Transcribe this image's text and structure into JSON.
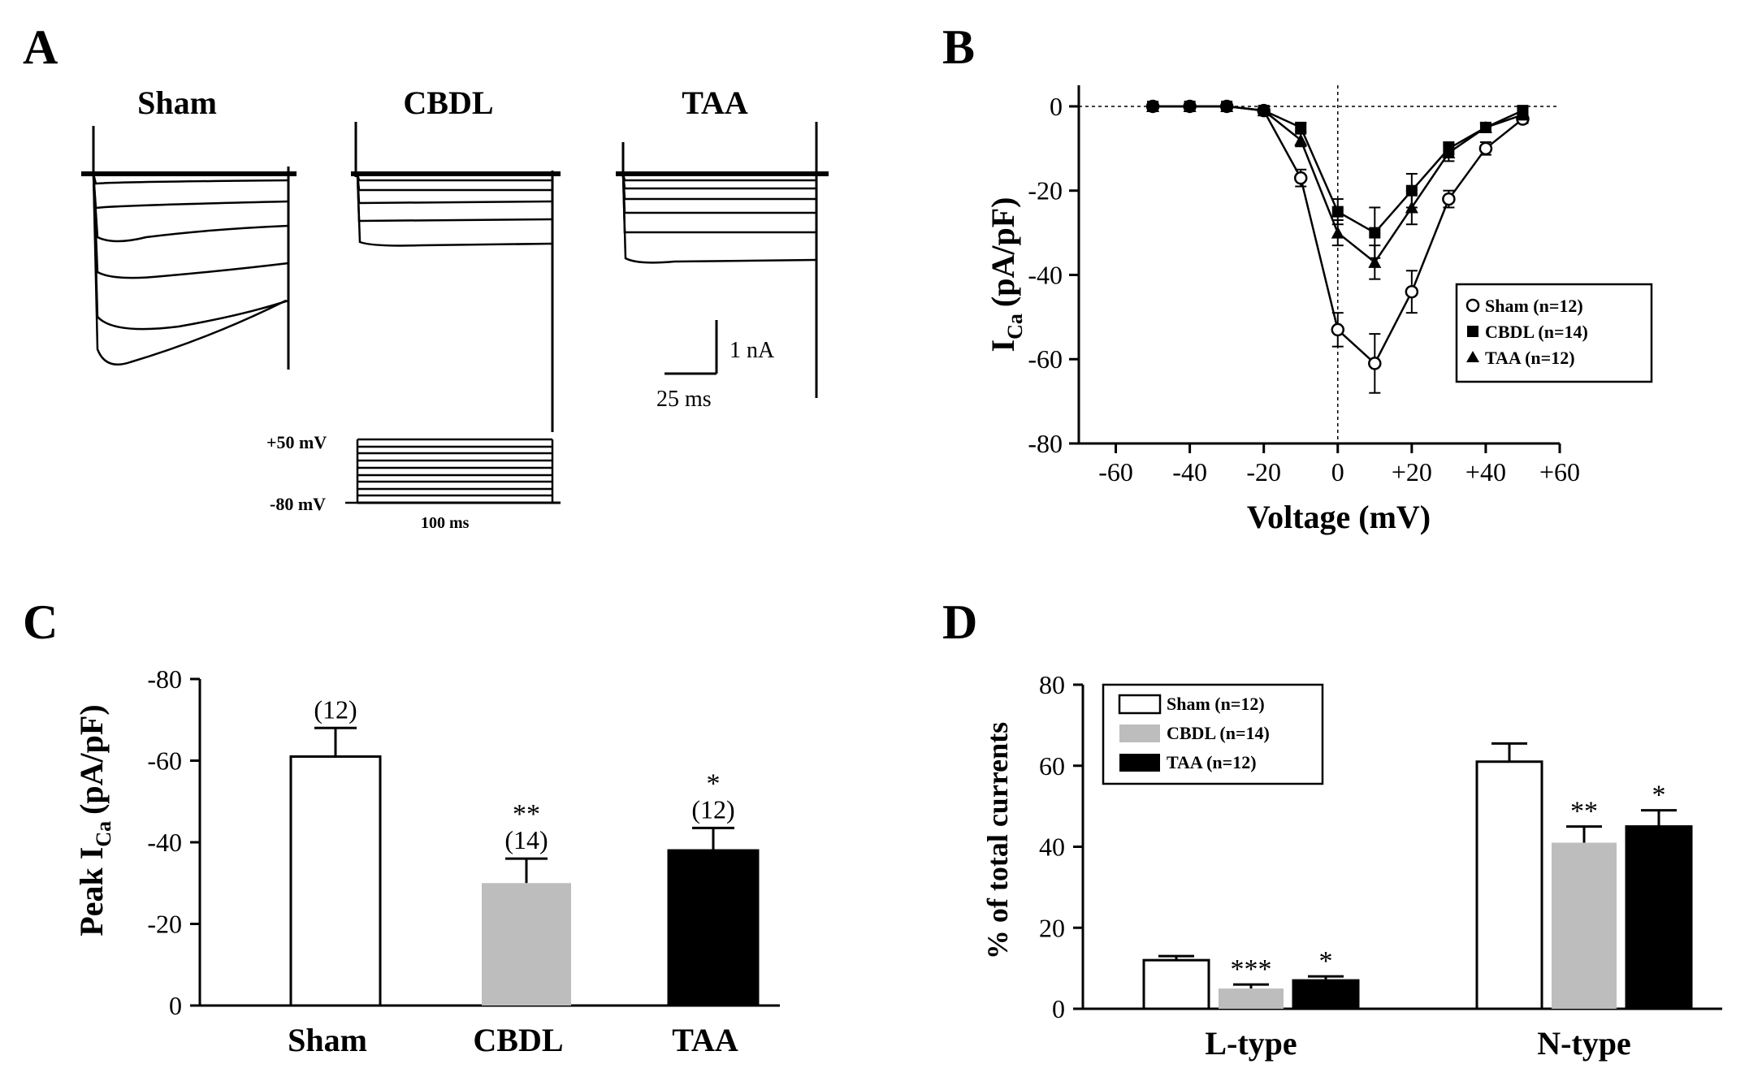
{
  "panel_labels": [
    "A",
    "B",
    "C",
    "D"
  ],
  "colors": {
    "sham": "#ffffff",
    "cbdl": "#bdbdbd",
    "taa": "#000000",
    "ink": "#000000"
  },
  "panelA": {
    "groups": [
      "Sham",
      "CBDL",
      "TAA"
    ],
    "scale_current": "1 nA",
    "scale_time": "25 ms",
    "protocol": {
      "top": "+50 mV",
      "bottom": "-80 mV",
      "duration": "100 ms"
    }
  },
  "chart_data": [
    {
      "panel": "B",
      "type": "line",
      "xlabel": "Voltage (mV)",
      "ylabel_main": "I",
      "ylabel_sub": "Ca",
      "ylabel_units": "(pA/pF)",
      "xlim": [
        -70,
        60
      ],
      "ylim": [
        -80,
        5
      ],
      "xticks": [
        -60,
        -40,
        -20,
        0,
        20,
        40,
        60
      ],
      "xtick_labels": [
        "-60",
        "-40",
        "-20",
        "0",
        "+20",
        "+40",
        "+60"
      ],
      "yticks": [
        0,
        -20,
        -40,
        -60,
        -80
      ],
      "ytick_labels": [
        "0",
        "-20",
        "-40",
        "-60",
        "-80"
      ],
      "x": [
        -50,
        -40,
        -30,
        -20,
        -10,
        0,
        10,
        20,
        30,
        40,
        50
      ],
      "series": [
        {
          "name": "Sham",
          "legend": "Sham  (n=12)",
          "marker": "circle-open",
          "values": [
            0,
            0,
            0,
            -1,
            -17,
            -53,
            -61,
            -44,
            -22,
            -10,
            -3
          ],
          "errors": [
            0,
            0,
            0,
            0.5,
            2,
            4,
            7,
            5,
            2,
            1.5,
            1
          ]
        },
        {
          "name": "CBDL",
          "legend": "CBDL (n=14)",
          "marker": "square-filled",
          "values": [
            0,
            0,
            0,
            -1,
            -5,
            -25,
            -30,
            -20,
            -10,
            -5,
            -1
          ],
          "errors": [
            0,
            0,
            0,
            0.5,
            1,
            3,
            6,
            4,
            1.5,
            1,
            0.5
          ]
        },
        {
          "name": "TAA",
          "legend": "TAA (n=12)",
          "marker": "triangle-filled",
          "values": [
            0,
            0,
            0,
            -1,
            -8,
            -30,
            -37,
            -24,
            -11,
            -5,
            -2
          ],
          "errors": [
            0,
            0,
            0,
            0.5,
            1.5,
            3,
            4,
            4,
            2,
            1,
            0.5
          ]
        }
      ]
    },
    {
      "panel": "C",
      "type": "bar",
      "ylabel_main": "Peak I",
      "ylabel_sub": "Ca",
      "ylabel_units": "(pA/pF)",
      "categories": [
        "Sham",
        "CBDL",
        "TAA"
      ],
      "values": [
        -61,
        -30,
        -38
      ],
      "errors": [
        7,
        6,
        5.5
      ],
      "n_labels": [
        "(12)",
        "(14)",
        "(12)"
      ],
      "significance": [
        "",
        "**",
        "*"
      ],
      "ylim": [
        0,
        -80
      ],
      "yticks": [
        0,
        -20,
        -40,
        -60,
        -80
      ],
      "ytick_labels": [
        "0",
        "-20",
        "-40",
        "-60",
        "-80"
      ]
    },
    {
      "panel": "D",
      "type": "bar",
      "ylabel": "% of total currents",
      "categories": [
        "L-type",
        "N-type"
      ],
      "series": [
        {
          "name": "Sham",
          "legend": "Sham  (n=12)",
          "values": [
            12,
            61
          ],
          "errors": [
            1,
            4.5
          ],
          "significance": [
            "",
            ""
          ]
        },
        {
          "name": "CBDL",
          "legend": "CBDL (n=14)",
          "values": [
            5,
            41
          ],
          "errors": [
            1,
            4
          ],
          "significance": [
            "***",
            "**"
          ]
        },
        {
          "name": "TAA",
          "legend": "TAA (n=12)",
          "values": [
            7,
            45
          ],
          "errors": [
            1,
            4
          ],
          "significance": [
            "*",
            "*"
          ]
        }
      ],
      "ylim": [
        0,
        80
      ],
      "yticks": [
        0,
        20,
        40,
        60,
        80
      ],
      "ytick_labels": [
        "0",
        "20",
        "40",
        "60",
        "80"
      ]
    }
  ]
}
